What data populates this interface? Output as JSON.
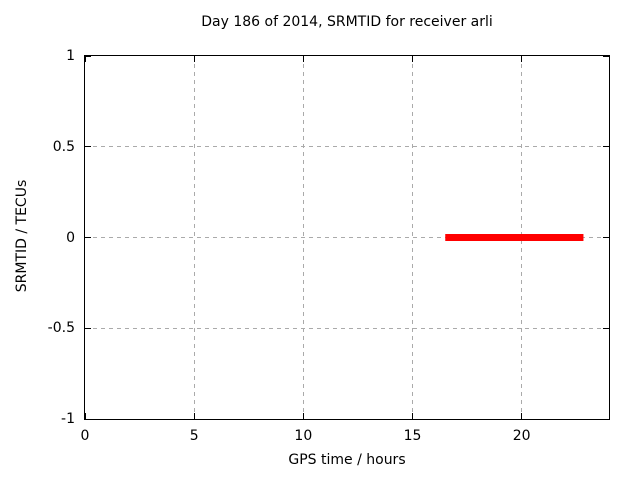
{
  "chart_data": {
    "type": "line",
    "title": "Day 186 of 2014, SRMTID for receiver arli",
    "xlabel": "GPS time / hours",
    "ylabel": "SRMTID / TECUs",
    "xlim": [
      0,
      24
    ],
    "ylim": [
      -1,
      1
    ],
    "xticks": [
      {
        "value": 0,
        "label": "0"
      },
      {
        "value": 5,
        "label": "5"
      },
      {
        "value": 10,
        "label": "10"
      },
      {
        "value": 15,
        "label": "15"
      },
      {
        "value": 20,
        "label": "20"
      }
    ],
    "yticks": [
      {
        "value": -1,
        "label": "-1"
      },
      {
        "value": -0.5,
        "label": "-0.5"
      },
      {
        "value": 0,
        "label": "0"
      },
      {
        "value": 0.5,
        "label": "0.5"
      },
      {
        "value": 1,
        "label": "1"
      }
    ],
    "grid": true,
    "legend": "none",
    "colors": {
      "grid": "#aaaaaa",
      "axis": "#000000",
      "series": "#ff0000"
    },
    "series": [
      {
        "name": "SRMTID",
        "color": "#ff0000",
        "linewidth": 7,
        "points": [
          [
            16.5,
            0
          ],
          [
            22.83,
            0
          ]
        ]
      }
    ]
  }
}
